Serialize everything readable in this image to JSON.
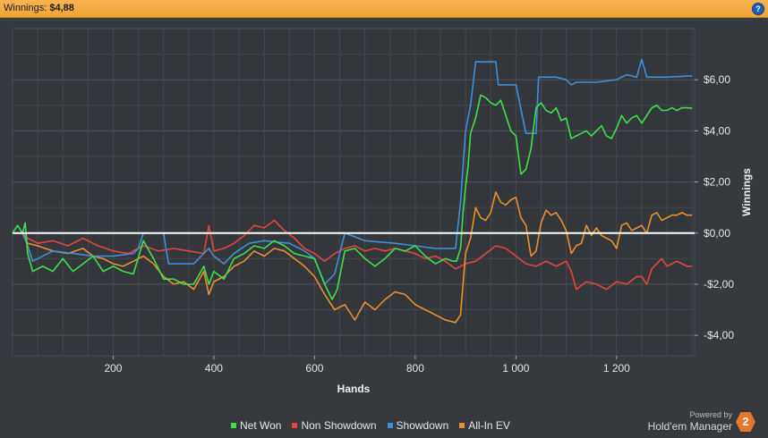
{
  "header": {
    "label": "Winnings:",
    "value": "$4,88",
    "help": "?"
  },
  "footer": {
    "powered_by": "Powered by",
    "brand": "Hold'em Manager",
    "logo_number": "2"
  },
  "chart_data": {
    "type": "line",
    "xlabel": "Hands",
    "ylabel": "Winnings",
    "xlim": [
      0,
      1355
    ],
    "ylim": [
      -4.8,
      8.0
    ],
    "x_ticks": [
      200,
      400,
      600,
      800,
      1000,
      1200
    ],
    "x_tick_labels": [
      "200",
      "400",
      "600",
      "800",
      "1 000",
      "1 200"
    ],
    "y_ticks": [
      6,
      4,
      2,
      0,
      -2,
      -4
    ],
    "y_tick_labels": [
      "$6,00",
      "$4,00",
      "$2,00",
      "$0,00",
      "-$2,00",
      "-$4,00"
    ],
    "legend_position": "bottom-center",
    "series": [
      {
        "name": "Net Won",
        "color": "#3fe04a",
        "points": [
          [
            0,
            0
          ],
          [
            10,
            0.3
          ],
          [
            20,
            0
          ],
          [
            25,
            0.4
          ],
          [
            30,
            -0.8
          ],
          [
            40,
            -1.5
          ],
          [
            60,
            -1.3
          ],
          [
            80,
            -1.5
          ],
          [
            100,
            -1.0
          ],
          [
            120,
            -1.5
          ],
          [
            140,
            -1.2
          ],
          [
            160,
            -0.9
          ],
          [
            180,
            -1.5
          ],
          [
            200,
            -1.3
          ],
          [
            220,
            -1.5
          ],
          [
            240,
            -1.6
          ],
          [
            260,
            -0.3
          ],
          [
            280,
            -1.0
          ],
          [
            300,
            -1.8
          ],
          [
            320,
            -1.8
          ],
          [
            340,
            -2.0
          ],
          [
            360,
            -2.0
          ],
          [
            380,
            -1.3
          ],
          [
            390,
            -2.0
          ],
          [
            400,
            -1.5
          ],
          [
            420,
            -1.8
          ],
          [
            440,
            -1.0
          ],
          [
            460,
            -0.8
          ],
          [
            480,
            -0.5
          ],
          [
            500,
            -0.6
          ],
          [
            520,
            -0.3
          ],
          [
            540,
            -0.5
          ],
          [
            560,
            -0.8
          ],
          [
            580,
            -0.9
          ],
          [
            600,
            -1.0
          ],
          [
            620,
            -2.0
          ],
          [
            635,
            -2.6
          ],
          [
            645,
            -2.2
          ],
          [
            660,
            -0.7
          ],
          [
            680,
            -0.6
          ],
          [
            700,
            -1.0
          ],
          [
            720,
            -1.3
          ],
          [
            740,
            -1.0
          ],
          [
            760,
            -0.6
          ],
          [
            780,
            -0.7
          ],
          [
            800,
            -0.5
          ],
          [
            820,
            -0.9
          ],
          [
            840,
            -1.2
          ],
          [
            860,
            -1.0
          ],
          [
            875,
            -1.1
          ],
          [
            882,
            -1.1
          ],
          [
            890,
            -0.6
          ],
          [
            895,
            0.8
          ],
          [
            900,
            1.8
          ],
          [
            905,
            2.6
          ],
          [
            910,
            3.9
          ],
          [
            920,
            4.5
          ],
          [
            930,
            5.4
          ],
          [
            940,
            5.3
          ],
          [
            950,
            5.1
          ],
          [
            960,
            5.0
          ],
          [
            970,
            5.2
          ],
          [
            980,
            4.6
          ],
          [
            990,
            4.0
          ],
          [
            1000,
            3.8
          ],
          [
            1010,
            2.3
          ],
          [
            1020,
            2.5
          ],
          [
            1030,
            3.3
          ],
          [
            1040,
            4.9
          ],
          [
            1050,
            5.1
          ],
          [
            1060,
            4.8
          ],
          [
            1070,
            4.7
          ],
          [
            1080,
            4.9
          ],
          [
            1090,
            4.4
          ],
          [
            1100,
            4.5
          ],
          [
            1110,
            3.7
          ],
          [
            1120,
            3.8
          ],
          [
            1130,
            3.9
          ],
          [
            1140,
            4.0
          ],
          [
            1150,
            3.8
          ],
          [
            1160,
            4.0
          ],
          [
            1170,
            4.2
          ],
          [
            1180,
            3.8
          ],
          [
            1190,
            3.7
          ],
          [
            1200,
            4.1
          ],
          [
            1210,
            4.6
          ],
          [
            1220,
            4.3
          ],
          [
            1230,
            4.5
          ],
          [
            1240,
            4.6
          ],
          [
            1250,
            4.3
          ],
          [
            1260,
            4.6
          ],
          [
            1270,
            4.9
          ],
          [
            1280,
            5.0
          ],
          [
            1290,
            4.8
          ],
          [
            1300,
            4.8
          ],
          [
            1310,
            4.9
          ],
          [
            1320,
            4.8
          ],
          [
            1330,
            4.9
          ],
          [
            1340,
            4.9
          ],
          [
            1350,
            4.88
          ]
        ]
      },
      {
        "name": "Non Showdown",
        "color": "#e5443c",
        "points": [
          [
            0,
            0
          ],
          [
            20,
            0
          ],
          [
            30,
            -0.2
          ],
          [
            50,
            -0.4
          ],
          [
            80,
            -0.3
          ],
          [
            110,
            -0.5
          ],
          [
            140,
            -0.2
          ],
          [
            170,
            -0.5
          ],
          [
            200,
            -0.7
          ],
          [
            230,
            -0.8
          ],
          [
            260,
            -0.5
          ],
          [
            290,
            -0.7
          ],
          [
            320,
            -0.6
          ],
          [
            350,
            -0.7
          ],
          [
            380,
            -0.8
          ],
          [
            390,
            0.3
          ],
          [
            400,
            -0.7
          ],
          [
            420,
            -0.6
          ],
          [
            440,
            -0.4
          ],
          [
            460,
            -0.1
          ],
          [
            480,
            0.3
          ],
          [
            500,
            0.2
          ],
          [
            520,
            0.5
          ],
          [
            540,
            0.1
          ],
          [
            560,
            -0.2
          ],
          [
            580,
            -0.6
          ],
          [
            600,
            -0.8
          ],
          [
            620,
            -1.1
          ],
          [
            640,
            -0.8
          ],
          [
            660,
            -0.6
          ],
          [
            680,
            -0.5
          ],
          [
            700,
            -0.7
          ],
          [
            720,
            -0.6
          ],
          [
            740,
            -0.7
          ],
          [
            760,
            -0.6
          ],
          [
            780,
            -0.7
          ],
          [
            800,
            -0.8
          ],
          [
            820,
            -1.0
          ],
          [
            840,
            -0.9
          ],
          [
            860,
            -1.1
          ],
          [
            880,
            -1.4
          ],
          [
            900,
            -1.2
          ],
          [
            920,
            -1.1
          ],
          [
            940,
            -0.8
          ],
          [
            960,
            -0.5
          ],
          [
            980,
            -0.6
          ],
          [
            1000,
            -0.9
          ],
          [
            1020,
            -1.2
          ],
          [
            1040,
            -1.3
          ],
          [
            1060,
            -1.1
          ],
          [
            1080,
            -1.3
          ],
          [
            1100,
            -1.1
          ],
          [
            1110,
            -1.5
          ],
          [
            1120,
            -2.2
          ],
          [
            1140,
            -1.9
          ],
          [
            1160,
            -2.0
          ],
          [
            1180,
            -2.2
          ],
          [
            1200,
            -1.9
          ],
          [
            1220,
            -2.0
          ],
          [
            1240,
            -1.7
          ],
          [
            1250,
            -1.7
          ],
          [
            1260,
            -2.0
          ],
          [
            1270,
            -1.4
          ],
          [
            1280,
            -1.2
          ],
          [
            1290,
            -1.0
          ],
          [
            1300,
            -1.3
          ],
          [
            1320,
            -1.1
          ],
          [
            1340,
            -1.3
          ],
          [
            1350,
            -1.3
          ]
        ]
      },
      {
        "name": "Showdown",
        "color": "#3f8fd9",
        "points": [
          [
            0,
            0
          ],
          [
            20,
            0
          ],
          [
            30,
            -0.5
          ],
          [
            40,
            -1.1
          ],
          [
            80,
            -0.7
          ],
          [
            120,
            -0.8
          ],
          [
            160,
            -0.9
          ],
          [
            200,
            -0.9
          ],
          [
            240,
            -0.8
          ],
          [
            250,
            -0.6
          ],
          [
            260,
            0
          ],
          [
            300,
            0
          ],
          [
            310,
            -1.2
          ],
          [
            360,
            -1.2
          ],
          [
            380,
            -0.8
          ],
          [
            390,
            -0.6
          ],
          [
            400,
            -0.9
          ],
          [
            420,
            -1.2
          ],
          [
            440,
            -0.8
          ],
          [
            470,
            -0.4
          ],
          [
            500,
            -0.3
          ],
          [
            550,
            -0.4
          ],
          [
            580,
            -0.7
          ],
          [
            600,
            -1.0
          ],
          [
            620,
            -2.0
          ],
          [
            640,
            -1.6
          ],
          [
            650,
            -0.8
          ],
          [
            660,
            0
          ],
          [
            700,
            -0.3
          ],
          [
            760,
            -0.4
          ],
          [
            800,
            -0.5
          ],
          [
            840,
            -0.6
          ],
          [
            880,
            -0.6
          ],
          [
            890,
            1.2
          ],
          [
            900,
            4.0
          ],
          [
            910,
            5.0
          ],
          [
            920,
            6.7
          ],
          [
            960,
            6.7
          ],
          [
            965,
            5.8
          ],
          [
            980,
            5.8
          ],
          [
            1000,
            5.8
          ],
          [
            1020,
            3.9
          ],
          [
            1040,
            3.9
          ],
          [
            1045,
            6.1
          ],
          [
            1080,
            6.1
          ],
          [
            1100,
            6.0
          ],
          [
            1110,
            5.8
          ],
          [
            1120,
            5.9
          ],
          [
            1160,
            5.9
          ],
          [
            1200,
            6.0
          ],
          [
            1220,
            6.2
          ],
          [
            1240,
            6.1
          ],
          [
            1250,
            6.8
          ],
          [
            1260,
            6.1
          ],
          [
            1280,
            6.1
          ],
          [
            1300,
            6.1
          ],
          [
            1350,
            6.15
          ]
        ]
      },
      {
        "name": "All-In EV",
        "color": "#ec8f2e",
        "points": [
          [
            0,
            0
          ],
          [
            20,
            0
          ],
          [
            30,
            -0.4
          ],
          [
            50,
            -0.5
          ],
          [
            80,
            -0.7
          ],
          [
            110,
            -0.8
          ],
          [
            140,
            -0.6
          ],
          [
            160,
            -0.9
          ],
          [
            180,
            -1.0
          ],
          [
            200,
            -1.2
          ],
          [
            220,
            -1.3
          ],
          [
            240,
            -1.1
          ],
          [
            260,
            -0.9
          ],
          [
            280,
            -1.2
          ],
          [
            300,
            -1.7
          ],
          [
            320,
            -2.0
          ],
          [
            340,
            -1.9
          ],
          [
            360,
            -2.2
          ],
          [
            380,
            -1.5
          ],
          [
            390,
            -2.4
          ],
          [
            400,
            -1.9
          ],
          [
            420,
            -1.7
          ],
          [
            440,
            -1.3
          ],
          [
            460,
            -1.1
          ],
          [
            480,
            -0.7
          ],
          [
            500,
            -0.9
          ],
          [
            520,
            -0.6
          ],
          [
            540,
            -0.7
          ],
          [
            560,
            -1.0
          ],
          [
            580,
            -1.3
          ],
          [
            600,
            -1.7
          ],
          [
            620,
            -2.4
          ],
          [
            640,
            -3.0
          ],
          [
            660,
            -2.8
          ],
          [
            680,
            -3.4
          ],
          [
            700,
            -2.7
          ],
          [
            720,
            -3.0
          ],
          [
            740,
            -2.6
          ],
          [
            760,
            -2.3
          ],
          [
            780,
            -2.4
          ],
          [
            800,
            -2.8
          ],
          [
            820,
            -3.0
          ],
          [
            840,
            -3.2
          ],
          [
            860,
            -3.4
          ],
          [
            880,
            -3.5
          ],
          [
            890,
            -3.2
          ],
          [
            900,
            -0.8
          ],
          [
            910,
            -0.2
          ],
          [
            920,
            1.0
          ],
          [
            930,
            0.6
          ],
          [
            940,
            0.5
          ],
          [
            950,
            0.8
          ],
          [
            960,
            1.6
          ],
          [
            970,
            1.2
          ],
          [
            980,
            1.1
          ],
          [
            990,
            1.3
          ],
          [
            1000,
            1.4
          ],
          [
            1010,
            0.6
          ],
          [
            1020,
            0.3
          ],
          [
            1030,
            -0.9
          ],
          [
            1040,
            -0.7
          ],
          [
            1050,
            0.4
          ],
          [
            1060,
            0.9
          ],
          [
            1070,
            0.7
          ],
          [
            1080,
            0.8
          ],
          [
            1090,
            0.5
          ],
          [
            1100,
            0.1
          ],
          [
            1110,
            -0.8
          ],
          [
            1120,
            -0.5
          ],
          [
            1130,
            -0.4
          ],
          [
            1140,
            0.3
          ],
          [
            1150,
            -0.1
          ],
          [
            1160,
            0.2
          ],
          [
            1170,
            -0.1
          ],
          [
            1180,
            -0.2
          ],
          [
            1190,
            -0.3
          ],
          [
            1200,
            -0.6
          ],
          [
            1210,
            0.3
          ],
          [
            1220,
            0.4
          ],
          [
            1230,
            0.1
          ],
          [
            1240,
            0.2
          ],
          [
            1250,
            0.3
          ],
          [
            1260,
            0.0
          ],
          [
            1270,
            0.7
          ],
          [
            1280,
            0.8
          ],
          [
            1290,
            0.5
          ],
          [
            1300,
            0.6
          ],
          [
            1310,
            0.7
          ],
          [
            1320,
            0.7
          ],
          [
            1330,
            0.8
          ],
          [
            1340,
            0.7
          ],
          [
            1350,
            0.7
          ]
        ]
      }
    ]
  }
}
